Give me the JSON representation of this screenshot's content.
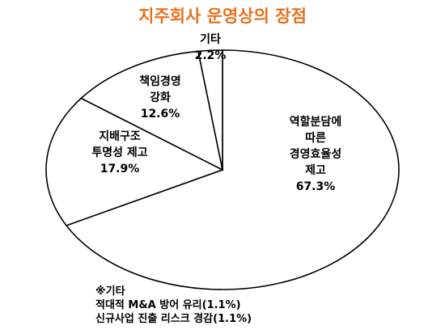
{
  "chart_data": {
    "type": "pie",
    "title": "지주회사 운영상의 장점",
    "slices": [
      {
        "label_lines": [
          "역할분담에",
          "따른",
          "경영효율성",
          "제고"
        ],
        "value": 67.3,
        "value_text": "67.3%"
      },
      {
        "label_lines": [
          "지배구조",
          "투명성 제고"
        ],
        "value": 17.9,
        "value_text": "17.9%"
      },
      {
        "label_lines": [
          "책임경영",
          "강화"
        ],
        "value": 12.6,
        "value_text": "12.6%"
      },
      {
        "label_lines": [
          "기타"
        ],
        "value": 2.2,
        "value_text": "2.2%"
      }
    ],
    "footnote": {
      "title": "※기타",
      "lines": [
        "적대적 M&A 방어 유리(1.1%)",
        "신규사업 진출 리스크 경감(1.1%)"
      ]
    }
  },
  "colors": {
    "title": "#e8711c",
    "slice_fill": "#ffffff",
    "slice_stroke": "#000000"
  }
}
